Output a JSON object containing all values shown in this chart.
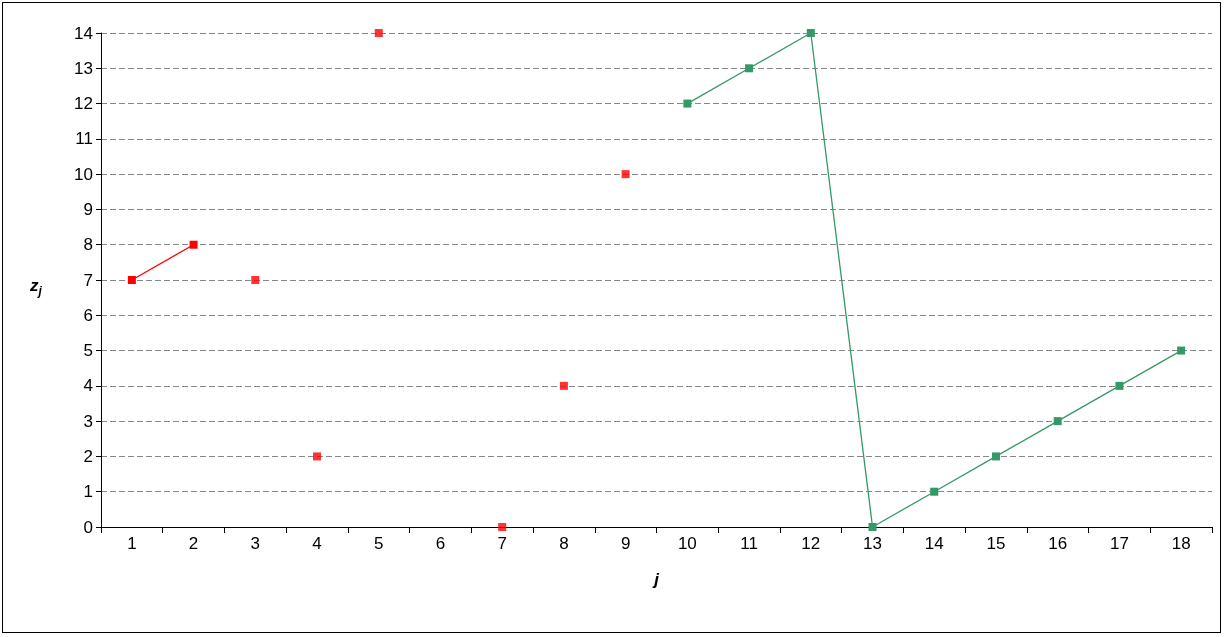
{
  "chart_data": {
    "type": "line",
    "xlabel": "j",
    "ylabel": "z$_{j}$",
    "categories": [
      "1",
      "2",
      "3",
      "4",
      "5",
      "6",
      "7",
      "8",
      "9",
      "10",
      "11",
      "12",
      "13",
      "14",
      "15",
      "16",
      "17",
      "18"
    ],
    "series": [
      {
        "type": "line",
        "color": "#ff0000",
        "values": [
          7,
          8,
          null,
          null,
          null,
          null,
          null,
          null,
          null,
          null,
          null,
          null,
          null,
          null,
          null,
          null,
          null,
          null
        ]
      },
      {
        "type": "scatter",
        "color": "#ff0000",
        "values": [
          null,
          null,
          7,
          2,
          14,
          null,
          0,
          4,
          10,
          null,
          null,
          null,
          null,
          null,
          null,
          null,
          null,
          null
        ]
      },
      {
        "type": "line",
        "color": "#339966",
        "values": [
          null,
          null,
          null,
          null,
          null,
          null,
          null,
          null,
          null,
          12,
          13,
          14,
          0,
          1,
          2,
          3,
          4,
          5
        ]
      }
    ],
    "ylim": [
      0,
      14
    ],
    "yticks": [
      0,
      1,
      2,
      3,
      4,
      5,
      6,
      7,
      8,
      9,
      10,
      11,
      12,
      13,
      14
    ],
    "grid": "y",
    "marker": "square"
  }
}
